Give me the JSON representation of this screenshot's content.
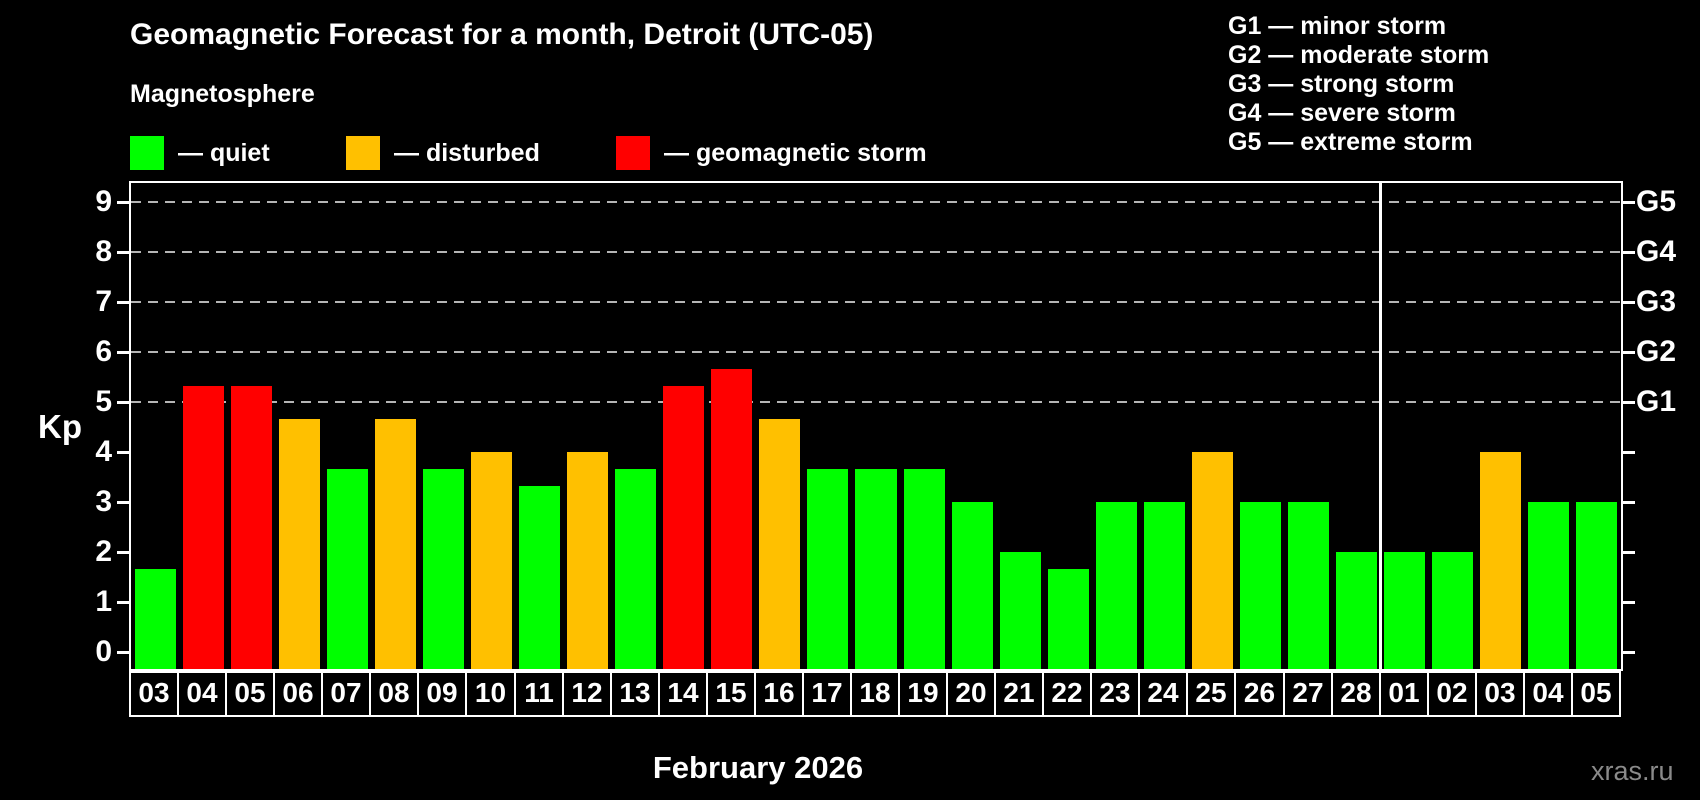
{
  "header": {
    "title": "Geomagnetic Forecast for a month, Detroit (UTC-05)",
    "subtitle": "Magnetosphere",
    "legend": [
      {
        "status": "quiet",
        "label": "— quiet"
      },
      {
        "status": "disturbed",
        "label": "— disturbed"
      },
      {
        "status": "storm",
        "label": "— geomagnetic storm"
      }
    ],
    "g_scale_legend": [
      "G1 — minor storm",
      "G2 — moderate storm",
      "G3 — strong storm",
      "G4 — severe storm",
      "G5 — extreme storm"
    ]
  },
  "chart_data": {
    "type": "bar",
    "title": "Geomagnetic Forecast for a month, Detroit (UTC-05)",
    "ylabel": "Kp",
    "xlabel": "February 2026",
    "ylim": [
      0,
      9
    ],
    "y_ticks": [
      0,
      1,
      2,
      3,
      4,
      5,
      6,
      7,
      8,
      9
    ],
    "gridlines_at": [
      5,
      6,
      7,
      8,
      9
    ],
    "right_axis_labels": [
      {
        "value": 5,
        "label": "G1"
      },
      {
        "value": 6,
        "label": "G2"
      },
      {
        "value": 7,
        "label": "G3"
      },
      {
        "value": 8,
        "label": "G4"
      },
      {
        "value": 9,
        "label": "G5"
      }
    ],
    "categories": [
      "03",
      "04",
      "05",
      "06",
      "07",
      "08",
      "09",
      "10",
      "11",
      "12",
      "13",
      "14",
      "15",
      "16",
      "17",
      "18",
      "19",
      "20",
      "21",
      "22",
      "23",
      "24",
      "25",
      "26",
      "27",
      "28",
      "01",
      "02",
      "03",
      "04",
      "05"
    ],
    "values": [
      1.67,
      5.33,
      5.33,
      4.67,
      3.67,
      4.67,
      3.67,
      4.0,
      3.33,
      4.0,
      3.67,
      5.33,
      5.67,
      4.67,
      3.67,
      3.67,
      3.67,
      3.0,
      2.0,
      1.67,
      3.0,
      3.0,
      4.0,
      3.0,
      3.0,
      2.0,
      2.0,
      2.0,
      4.0,
      3.0,
      3.0
    ],
    "statuses": [
      "quiet",
      "storm",
      "storm",
      "disturbed",
      "quiet",
      "disturbed",
      "quiet",
      "disturbed",
      "quiet",
      "disturbed",
      "quiet",
      "storm",
      "storm",
      "disturbed",
      "quiet",
      "quiet",
      "quiet",
      "quiet",
      "quiet",
      "quiet",
      "quiet",
      "quiet",
      "disturbed",
      "quiet",
      "quiet",
      "quiet",
      "quiet",
      "quiet",
      "disturbed",
      "quiet",
      "quiet"
    ],
    "month_separator_after_index": 25,
    "colors": {
      "quiet": "#00ff00",
      "disturbed": "#ffc000",
      "storm": "#ff0000",
      "grid": "#b5b5b5",
      "axis": "#ffffff",
      "background": "#000000",
      "watermark": "#8a8a8a"
    }
  },
  "footer": {
    "month_label": "February 2026",
    "watermark": "xras.ru"
  }
}
